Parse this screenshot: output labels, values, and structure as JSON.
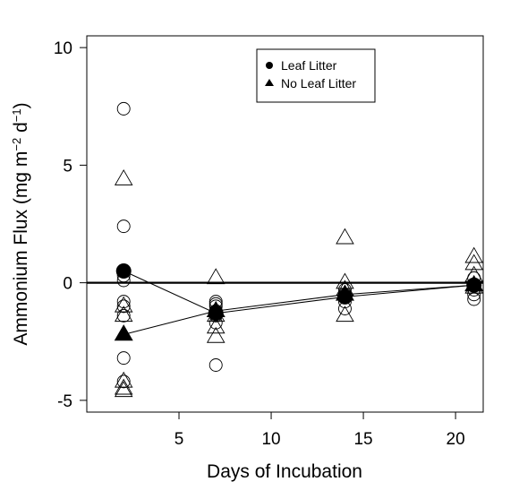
{
  "chart_data": {
    "type": "scatter",
    "xlabel": "Days of Incubation",
    "ylabel": {
      "main": "Ammonium Flux (mg m",
      "exp1": "−2",
      "mid": " d",
      "exp2": "−1",
      "end": ")"
    },
    "xlim": [
      0,
      21.5
    ],
    "ylim": [
      -5.5,
      10.5
    ],
    "xticks": [
      5,
      10,
      15,
      20
    ],
    "yticks": [
      -5,
      0,
      5,
      10
    ],
    "reference_line_y": 0,
    "grid": false,
    "legend": {
      "position": "top-right",
      "entries": [
        {
          "label": "Leaf Litter",
          "marker": "circle"
        },
        {
          "label": "No Leaf Litter",
          "marker": "triangle"
        }
      ]
    },
    "series": [
      {
        "name": "Leaf Litter",
        "marker": "circle",
        "replicates": [
          {
            "x": 2,
            "y": [
              7.4,
              2.4,
              0.3,
              0.1,
              -0.8,
              -1.0,
              -1.4,
              -3.2,
              -4.2
            ]
          },
          {
            "x": 7,
            "y": [
              -0.8,
              -0.9,
              -1.0,
              -1.2,
              -1.4,
              -1.7,
              -3.5
            ]
          },
          {
            "x": 14,
            "y": [
              -0.3,
              -0.5,
              -0.6,
              -0.8,
              -1.1
            ]
          },
          {
            "x": 21,
            "y": [
              0.2,
              -0.1,
              -0.3,
              -0.5,
              -0.7
            ]
          }
        ],
        "mean": {
          "x": [
            2,
            7,
            14,
            21
          ],
          "y": [
            0.5,
            -1.3,
            -0.6,
            -0.1
          ]
        }
      },
      {
        "name": "No Leaf Litter",
        "marker": "triangle",
        "replicates": [
          {
            "x": 2,
            "y": [
              4.4,
              -1.0,
              -1.4,
              -4.2,
              -4.5,
              -4.6
            ]
          },
          {
            "x": 7,
            "y": [
              0.2,
              -1.4,
              -1.9,
              -2.3
            ]
          },
          {
            "x": 14,
            "y": [
              1.9,
              0.0,
              -0.3,
              -1.4
            ]
          },
          {
            "x": 21,
            "y": [
              1.1,
              0.8,
              0.3,
              -0.1,
              -0.2
            ]
          }
        ],
        "mean": {
          "x": [
            2,
            7,
            14,
            21
          ],
          "y": [
            -2.2,
            -1.2,
            -0.5,
            -0.1
          ]
        }
      }
    ]
  }
}
